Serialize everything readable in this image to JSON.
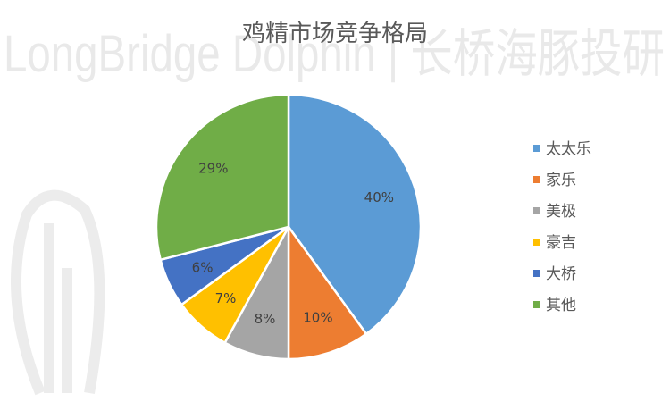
{
  "watermark": {
    "text": "LongBridge Dolphin | 长桥海豚投研"
  },
  "chart_data": {
    "type": "pie",
    "title": "鸡精市场竞争格局",
    "legend_position": "right",
    "slices": [
      {
        "name": "太太乐",
        "value": 40,
        "label": "40%",
        "color": "#5B9BD5"
      },
      {
        "name": "家乐",
        "value": 10,
        "label": "10%",
        "color": "#ED7D31"
      },
      {
        "name": "美极",
        "value": 8,
        "label": "8%",
        "color": "#A5A5A5"
      },
      {
        "name": "豪吉",
        "value": 7,
        "label": "7%",
        "color": "#FFC000"
      },
      {
        "name": "大桥",
        "value": 6,
        "label": "6%",
        "color": "#4472C4"
      },
      {
        "name": "其他",
        "value": 29,
        "label": "29%",
        "color": "#70AD47"
      }
    ]
  }
}
